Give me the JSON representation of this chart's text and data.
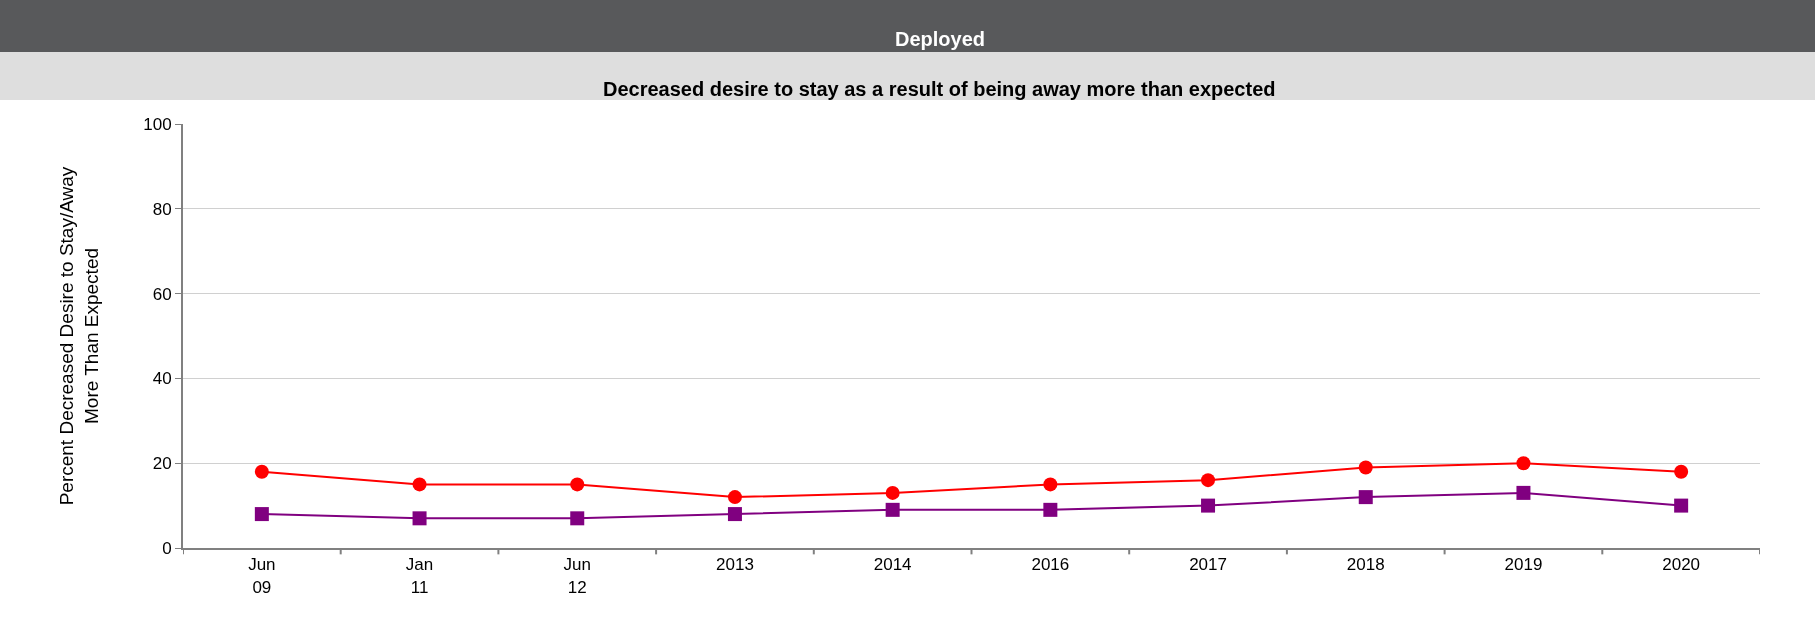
{
  "chart_data": {
    "type": "line",
    "title": "Deployed",
    "subtitle": "Decreased desire to stay as a result of being away more than expected",
    "ylabel": "Percent Decreased Desire to Stay/Away\nMore Than Expected",
    "categories": [
      "Jun\n09",
      "Jan\n11",
      "Jun\n12",
      "2013",
      "2014",
      "2016",
      "2017",
      "2018",
      "2019",
      "2020"
    ],
    "series": [
      {
        "color": "#ff0000",
        "marker": "circle",
        "values": [
          18,
          15,
          15,
          12,
          13,
          15,
          16,
          19,
          20,
          18
        ]
      },
      {
        "color": "#800080",
        "marker": "square",
        "values": [
          8,
          7,
          7,
          8,
          9,
          9,
          10,
          12,
          13,
          10
        ]
      }
    ],
    "ylim": [
      0,
      100
    ],
    "yticks": [
      0,
      20,
      40,
      60,
      80,
      100
    ],
    "grid": "y",
    "line_style": "solid"
  }
}
